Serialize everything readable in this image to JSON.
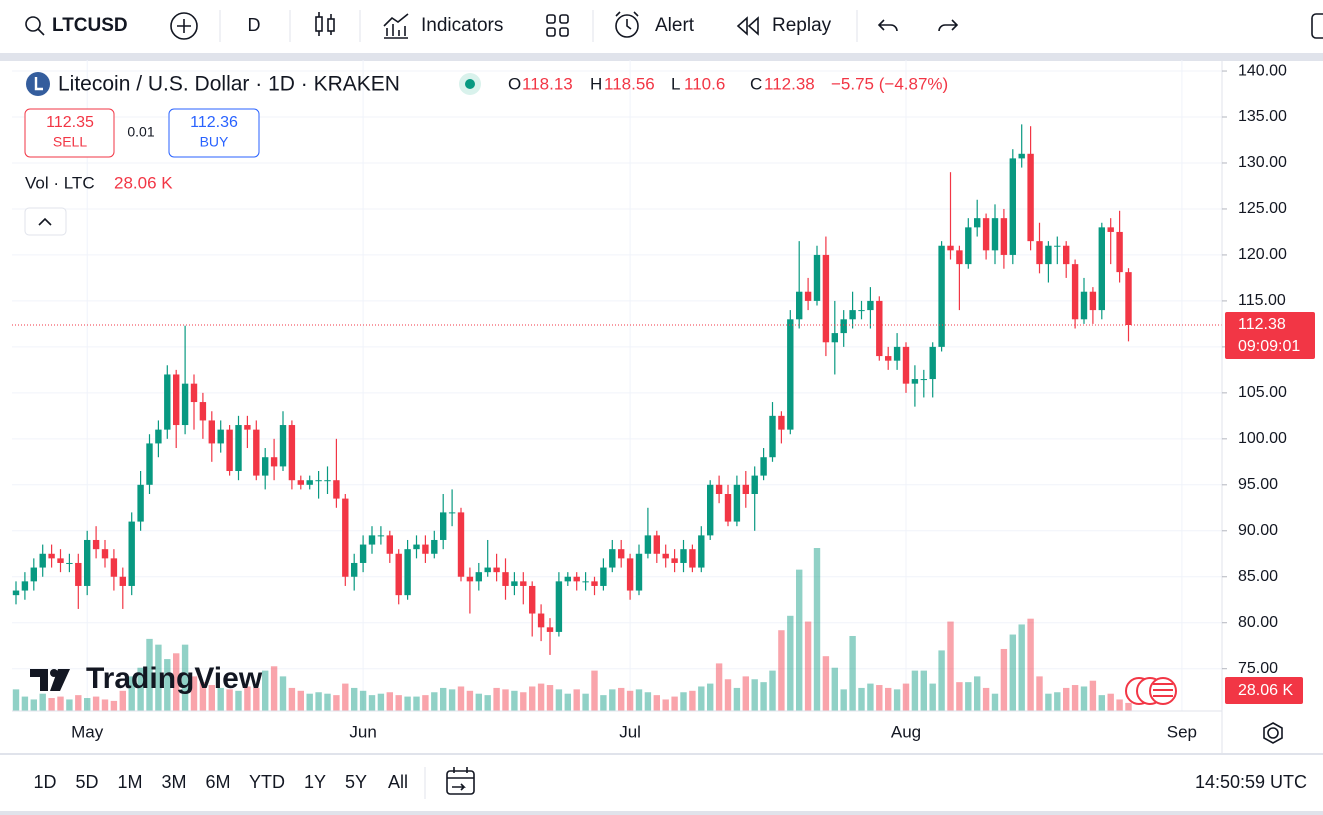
{
  "toolbar": {
    "symbol": "LTCUSD",
    "interval": "D",
    "indicators": "Indicators",
    "alert": "Alert",
    "replay": "Replay"
  },
  "trade": {
    "sell_price": "112.35",
    "sell": "SELL",
    "spread": "0.01",
    "buy_price": "112.36",
    "buy": "BUY"
  },
  "chart_data": {
    "type": "candlestick",
    "title": "Litecoin / U.S. Dollar · 1D · KRAKEN",
    "ohlc_labels": [
      "O",
      "H",
      "L",
      "C"
    ],
    "change_label": "−5.75 (−4.87%)",
    "volume_title": "Vol · LTC",
    "volume_last_label": "28.06 K",
    "countdown": "09:09:01",
    "up_color": "#089981",
    "down_color": "#f23645",
    "open": [
      83,
      83.5,
      84.5,
      86,
      87.5,
      87,
      86.5,
      86.5,
      84,
      89,
      88,
      87,
      85,
      84,
      91,
      95,
      99.5,
      101,
      107,
      101.5,
      106,
      104,
      102,
      99.5,
      101,
      96.5,
      101.5,
      101,
      96,
      98,
      97,
      101.5,
      95.5,
      95,
      95.5,
      95.5,
      95.5,
      93.5,
      85,
      86.5,
      88.5,
      89.5,
      89.5,
      87.5,
      83,
      88,
      88.5,
      87.5,
      89,
      92,
      92,
      85,
      84.5,
      85.5,
      86,
      85.5,
      84,
      84.5,
      84,
      81,
      79.5,
      79,
      84.5,
      85,
      84.5,
      84.5,
      84,
      86,
      88,
      87,
      83.5,
      87.5,
      89.5,
      87.5,
      87,
      86.5,
      88,
      86,
      89.5,
      95,
      94,
      91,
      95,
      94,
      96,
      98,
      102.5,
      101,
      113,
      116,
      115,
      120,
      110.5,
      111.5,
      113,
      114,
      114,
      115,
      109,
      108.5,
      110,
      106,
      106.5,
      106.5,
      110,
      121,
      120.5,
      119,
      123,
      124,
      120.5,
      124,
      120,
      130.5,
      131,
      121.5,
      119,
      121,
      121,
      119,
      113,
      116,
      114,
      123,
      122.5,
      118.13
    ],
    "high": [
      84.5,
      85.5,
      87,
      88.5,
      88.5,
      88,
      87.5,
      87.5,
      90,
      90.5,
      89,
      88,
      86,
      92,
      96.5,
      100.5,
      102,
      108,
      107.5,
      112.3,
      107,
      105,
      103,
      102,
      101.5,
      102.5,
      102.5,
      102,
      99,
      100,
      103,
      102,
      96,
      96,
      96.5,
      97,
      100,
      94,
      87.5,
      89.5,
      90.5,
      90.5,
      90,
      88,
      89,
      89.5,
      89.5,
      90,
      94,
      94.5,
      92.5,
      86,
      86.5,
      89,
      87.5,
      87,
      85.5,
      85.5,
      84.5,
      82,
      80.5,
      85.5,
      85.5,
      85.5,
      85.5,
      85,
      87,
      89,
      89,
      87.5,
      88.5,
      92.5,
      90,
      88.5,
      88,
      89,
      88.5,
      90.5,
      95.5,
      96,
      95,
      96,
      96.5,
      97,
      99,
      104,
      103,
      114,
      121.5,
      117.5,
      121,
      122,
      115,
      114,
      116,
      115,
      116.5,
      115.5,
      110,
      111.5,
      110.5,
      108,
      107.5,
      110.5,
      121.5,
      129,
      121,
      124,
      126,
      124.5,
      125.5,
      125,
      131.5,
      134.2,
      134,
      123.5,
      121.5,
      122,
      121.5,
      119.5,
      117.5,
      116.5,
      123.5,
      124,
      124.8,
      118.56
    ],
    "low": [
      82,
      82.5,
      83.5,
      85,
      86,
      85.5,
      85.5,
      81.5,
      83,
      87,
      86,
      83.5,
      81.5,
      83,
      90,
      94,
      98,
      100,
      99,
      100.5,
      101,
      100,
      97.5,
      98.5,
      96,
      95.5,
      99,
      95.5,
      94.5,
      95.5,
      96.5,
      94.5,
      94.5,
      94.5,
      93.5,
      94,
      92.5,
      84,
      83.5,
      85.5,
      87.5,
      88.5,
      86.5,
      82,
      82.5,
      87,
      86.5,
      87,
      88,
      90.5,
      84.5,
      81,
      83.5,
      85,
      84.5,
      82.5,
      83,
      82,
      78.5,
      78,
      76.5,
      78.5,
      84,
      83.5,
      83.5,
      83,
      83.5,
      85.5,
      86,
      82.5,
      83,
      87,
      86.5,
      86,
      85.5,
      85.5,
      85.5,
      85.5,
      89,
      93,
      90.5,
      90.5,
      92.5,
      90,
      95.5,
      97.5,
      99.5,
      100.5,
      112,
      114,
      114.5,
      109,
      107,
      110,
      112,
      113,
      112,
      108.5,
      107.5,
      107.5,
      105,
      103.5,
      104.5,
      104.5,
      109.5,
      119.5,
      114,
      118.5,
      122,
      119.5,
      119,
      118.5,
      119,
      129.5,
      120.5,
      118,
      117,
      119,
      117.5,
      112,
      112.5,
      112.5,
      113,
      119,
      117,
      110.6
    ],
    "close": [
      83.5,
      84.5,
      86,
      87.5,
      87,
      86.5,
      86.5,
      84,
      89,
      88,
      87,
      85,
      84,
      91,
      95,
      99.5,
      101,
      107,
      101.5,
      106,
      104,
      102,
      99.5,
      101,
      96.5,
      101.5,
      101,
      96,
      98,
      97,
      101.5,
      95.5,
      95,
      95.5,
      95.5,
      95.5,
      93.5,
      85,
      86.5,
      88.5,
      89.5,
      89.5,
      87.5,
      83,
      88,
      88.5,
      87.5,
      89,
      92,
      92,
      85,
      84.5,
      85.5,
      86,
      85.5,
      84,
      84.5,
      84,
      81,
      79.5,
      79,
      84.5,
      85,
      84.5,
      84.5,
      84,
      86,
      88,
      87,
      83.5,
      87.5,
      89.5,
      87.5,
      87,
      86.5,
      88,
      86,
      89.5,
      95,
      94,
      91,
      95,
      94,
      96,
      98,
      102.5,
      101,
      113,
      116,
      115,
      120,
      110.5,
      111.5,
      113,
      114,
      114,
      115,
      109,
      108.5,
      110,
      106,
      106.5,
      106.5,
      110,
      121,
      120.5,
      119,
      123,
      124,
      120.5,
      124,
      120,
      130.5,
      131,
      121.5,
      119,
      121,
      121,
      119,
      113,
      116,
      114,
      123,
      122.5,
      118.13,
      112.38
    ],
    "volume": [
      75,
      50,
      40,
      60,
      45,
      50,
      40,
      55,
      45,
      50,
      40,
      35,
      70,
      120,
      150,
      250,
      230,
      180,
      200,
      230,
      120,
      100,
      90,
      80,
      75,
      70,
      85,
      80,
      140,
      155,
      120,
      80,
      70,
      60,
      65,
      60,
      55,
      95,
      80,
      70,
      55,
      60,
      65,
      55,
      50,
      50,
      55,
      65,
      80,
      75,
      85,
      70,
      60,
      55,
      80,
      75,
      70,
      65,
      85,
      95,
      90,
      75,
      60,
      75,
      60,
      140,
      55,
      75,
      80,
      70,
      75,
      65,
      55,
      40,
      50,
      65,
      70,
      85,
      95,
      165,
      110,
      80,
      120,
      110,
      100,
      140,
      280,
      330,
      490,
      310,
      565,
      190,
      150,
      75,
      260,
      80,
      95,
      90,
      80,
      75,
      95,
      140,
      140,
      95,
      210,
      310,
      100,
      100,
      120,
      80,
      60,
      215,
      265,
      300,
      320,
      120,
      60,
      65,
      80,
      90,
      85,
      105,
      55,
      60,
      40,
      28.06
    ],
    "ylim": [
      70.4,
      141.2
    ],
    "yticks": [
      {
        "value": 75,
        "label": "75.00"
      },
      {
        "value": 80,
        "label": "80.00"
      },
      {
        "value": 85,
        "label": "85.00"
      },
      {
        "value": 90,
        "label": "90.00"
      },
      {
        "value": 95,
        "label": "95.00"
      },
      {
        "value": 100,
        "label": "100.00"
      },
      {
        "value": 105,
        "label": "105.00"
      },
      {
        "value": 110,
        "label": "110.00"
      },
      {
        "value": 115,
        "label": "115.00"
      },
      {
        "value": 120,
        "label": "120.00"
      },
      {
        "value": 125,
        "label": "125.00"
      },
      {
        "value": 130,
        "label": "130.00"
      },
      {
        "value": 135,
        "label": "135.00"
      },
      {
        "value": 140,
        "label": "140.00"
      }
    ],
    "xticks": [
      {
        "value": 8,
        "label": "May"
      },
      {
        "value": 39,
        "label": "Jun"
      },
      {
        "value": 69,
        "label": "Jul"
      },
      {
        "value": 100,
        "label": "Aug"
      },
      {
        "value": 131,
        "label": "Sep"
      }
    ],
    "grid": true,
    "watermark": "TradingView"
  },
  "footer": {
    "ranges": [
      "1D",
      "5D",
      "1M",
      "3M",
      "6M",
      "YTD",
      "1Y",
      "5Y",
      "All"
    ],
    "clock": "14:50:59 UTC"
  }
}
